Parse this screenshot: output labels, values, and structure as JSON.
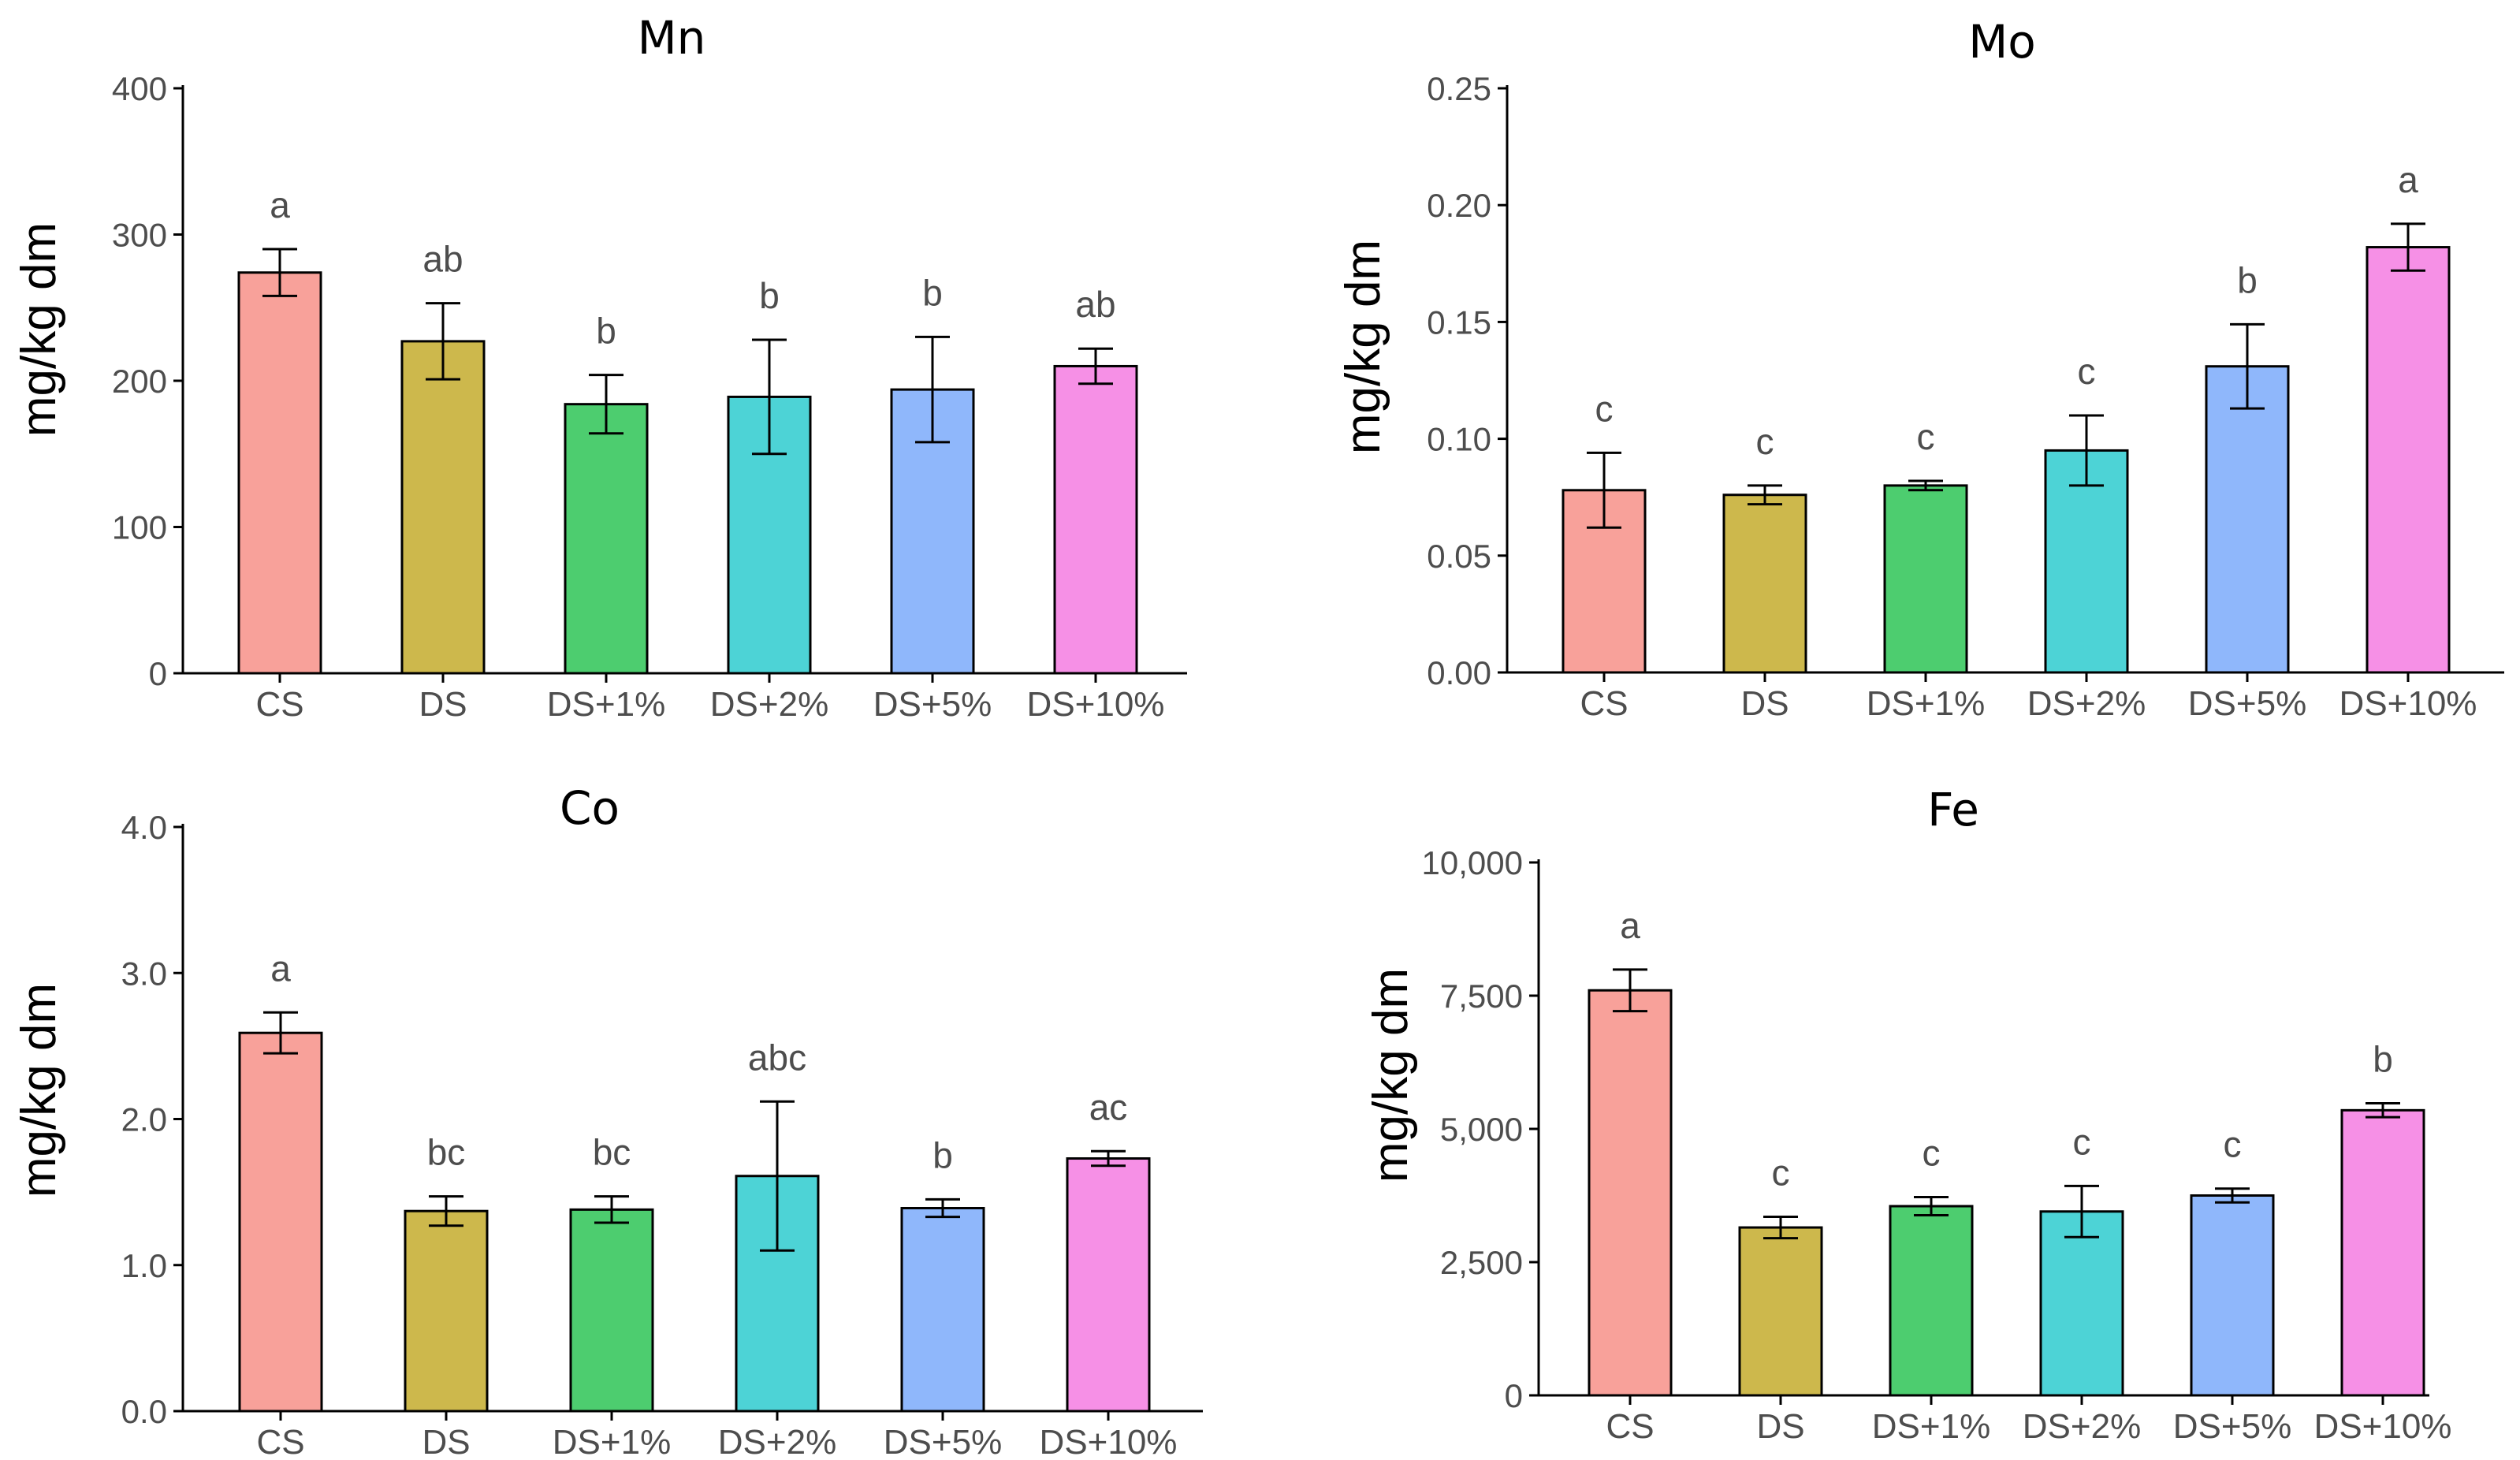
{
  "chart_data": [
    {
      "type": "bar",
      "title": "Mn",
      "ylabel": "mg/kg dm",
      "xlabel": "",
      "categories": [
        "CS",
        "DS",
        "DS+1%",
        "DS+2%",
        "DS+5%",
        "DS+10%"
      ],
      "values": [
        274,
        227,
        184,
        189,
        194,
        210
      ],
      "error": [
        16,
        26,
        20,
        39,
        36,
        12
      ],
      "letters": [
        "a",
        "ab",
        "b",
        "b",
        "b",
        "ab"
      ],
      "ylim": [
        0,
        400
      ],
      "yticks": [
        0,
        100,
        200,
        300,
        400
      ],
      "ytick_labels": [
        "0",
        "100",
        "200",
        "300",
        "400"
      ],
      "colors": [
        "#F8A19A",
        "#CDB84C",
        "#4DCD6F",
        "#4DD3D6",
        "#8FB7FB",
        "#F690E6"
      ],
      "grid": false,
      "legend": "none"
    },
    {
      "type": "bar",
      "title": "Mo",
      "ylabel": "mg/kg dm",
      "xlabel": "",
      "categories": [
        "CS",
        "DS",
        "DS+1%",
        "DS+2%",
        "DS+5%",
        "DS+10%"
      ],
      "values": [
        0.078,
        0.076,
        0.08,
        0.095,
        0.131,
        0.182
      ],
      "error": [
        0.016,
        0.004,
        0.002,
        0.015,
        0.018,
        0.01
      ],
      "letters": [
        "c",
        "c",
        "c",
        "c",
        "b",
        "a"
      ],
      "ylim": [
        0,
        0.25
      ],
      "yticks": [
        0,
        0.05,
        0.1,
        0.15,
        0.2,
        0.25
      ],
      "ytick_labels": [
        "0.00",
        "0.05",
        "0.10",
        "0.15",
        "0.20",
        "0.25"
      ],
      "colors": [
        "#F8A19A",
        "#CDB84C",
        "#4DCD6F",
        "#4DD3D6",
        "#8FB7FB",
        "#F690E6"
      ],
      "grid": false,
      "legend": "none"
    },
    {
      "type": "bar",
      "title": "Co",
      "ylabel": "mg/kg dm",
      "xlabel": "",
      "categories": [
        "CS",
        "DS",
        "DS+1%",
        "DS+2%",
        "DS+5%",
        "DS+10%"
      ],
      "values": [
        2.59,
        1.37,
        1.38,
        1.61,
        1.39,
        1.73
      ],
      "error": [
        0.14,
        0.1,
        0.09,
        0.51,
        0.06,
        0.05
      ],
      "letters": [
        "a",
        "bc",
        "bc",
        "abc",
        "b",
        "ac"
      ],
      "ylim": [
        0,
        4.0
      ],
      "yticks": [
        0,
        1,
        2,
        3,
        4
      ],
      "ytick_labels": [
        "0.0",
        "1.0",
        "2.0",
        "3.0",
        "4.0"
      ],
      "colors": [
        "#F8A19A",
        "#CDB84C",
        "#4DCD6F",
        "#4DD3D6",
        "#8FB7FB",
        "#F690E6"
      ],
      "grid": false,
      "legend": "none"
    },
    {
      "type": "bar",
      "title": "Fe",
      "ylabel": "mg/kg dm",
      "xlabel": "",
      "categories": [
        "CS",
        "DS",
        "DS+1%",
        "DS+2%",
        "DS+5%",
        "DS+10%"
      ],
      "values": [
        7600,
        3150,
        3550,
        3450,
        3750,
        5350
      ],
      "error": [
        390,
        200,
        170,
        480,
        130,
        130
      ],
      "letters": [
        "a",
        "c",
        "c",
        "c",
        "c",
        "b"
      ],
      "ylim": [
        0,
        10000
      ],
      "yticks": [
        0,
        2500,
        5000,
        7500,
        10000
      ],
      "ytick_labels": [
        "0",
        "2,500",
        "5,000",
        "7,500",
        "10,000"
      ],
      "colors": [
        "#F8A19A",
        "#CDB84C",
        "#4DCD6F",
        "#4DD3D6",
        "#8FB7FB",
        "#F690E6"
      ],
      "grid": false,
      "legend": "none"
    }
  ]
}
